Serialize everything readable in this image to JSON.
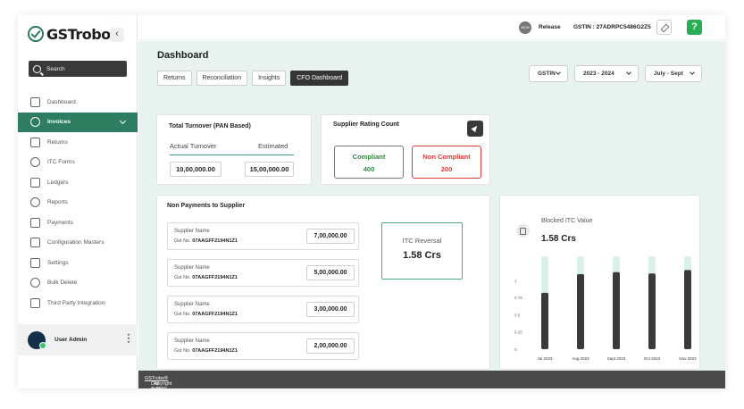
{
  "app": {
    "brand": "GSTrobo",
    "brand_mark": "®",
    "collapse_icon": "‹"
  },
  "search": {
    "placeholder": "Search"
  },
  "sidebar": {
    "items": [
      {
        "label": "Dashboard",
        "icon": "dashboard-icon"
      },
      {
        "label": "Invoices",
        "icon": "invoices-icon",
        "active": true
      },
      {
        "label": "Returns",
        "icon": "returns-icon"
      },
      {
        "label": "ITC Forms",
        "icon": "itc-forms-icon"
      },
      {
        "label": "Ledgers",
        "icon": "ledgers-icon"
      },
      {
        "label": "Reports",
        "icon": "reports-icon"
      },
      {
        "label": "Payments",
        "icon": "payments-icon"
      },
      {
        "label": "Configuration Masters",
        "icon": "configuration-icon"
      },
      {
        "label": "Settings",
        "icon": "settings-icon"
      },
      {
        "label": "Bulk Delete",
        "icon": "bulk-delete-icon"
      },
      {
        "label": "Third Party Integration",
        "icon": "integration-icon"
      }
    ]
  },
  "user": {
    "name": "User Admin"
  },
  "topbar": {
    "release_badge": "NEW",
    "release_label": "Release",
    "gstin": "GSTIN : 27ADRPC5486G2Z5",
    "help_label": "?"
  },
  "page": {
    "title": "Dashboard"
  },
  "tabs": [
    "Returns",
    "Reconciliation",
    "Insights",
    "CFO Dashboard"
  ],
  "filters": {
    "gstin": "GSTIN",
    "year": "2023 - 2024",
    "period": "July - Sept"
  },
  "turnover": {
    "title": "Total Turnover (PAN Based)",
    "actual_label": "Actual Turnover",
    "estimated_label": "Estimated",
    "actual_value": "10,00,000.00",
    "estimated_value": "15,00,000.00"
  },
  "rating": {
    "title": "Supplier Rating Count",
    "compliant_label": "Compliant",
    "compliant_value": "400",
    "non_compliant_label": "Non Compliant",
    "non_compliant_value": "200"
  },
  "non_payments": {
    "title": "Non Payments to Supplier",
    "suppliers": [
      {
        "name_label": "Supplier Name",
        "gst_label": "Gst No.",
        "gst": "07AAGFF2194N1Z1",
        "amount": "7,00,000.00"
      },
      {
        "name_label": "Supplier Name",
        "gst_label": "Gst No.",
        "gst": "07AAGFF2194N1Z1",
        "amount": "5,00,000.00"
      },
      {
        "name_label": "Supplier Name",
        "gst_label": "Gst No.",
        "gst": "07AAGFF2194N1Z1",
        "amount": "3,00,000.00"
      },
      {
        "name_label": "Supplier Name",
        "gst_label": "Gst No.",
        "gst": "07AAGFF2194N1Z1",
        "amount": "2,00,000.00"
      }
    ],
    "itc_reversal_label": "ITC Reversal",
    "itc_reversal_value": "1.58 Crs"
  },
  "blocked_itc": {
    "title": "Blocked ITC Value",
    "value": "1.58 Crs"
  },
  "chart_data": {
    "type": "bar",
    "categories": [
      "Jul 2023",
      "Aug 2023",
      "Sept 2023",
      "Oct 2023",
      "Nov 2023"
    ],
    "y_ticks": [
      "0",
      "0.25",
      "0.5",
      "0.75",
      "1"
    ],
    "ylim": [
      0,
      1.35
    ],
    "series": [
      {
        "values": [
          0.82,
          1.09,
          1.12,
          1.1,
          1.15
        ],
        "color": "#3a3a3a"
      },
      {
        "values": [
          1.35,
          1.35,
          1.35,
          1.35,
          1.35
        ],
        "color": "#d8f1e9"
      }
    ],
    "grid": false
  },
  "footer": {
    "prefix": "Copyright © 2023 ",
    "link": "GSTrobo®",
    "suffix": ". All rights reserved."
  }
}
